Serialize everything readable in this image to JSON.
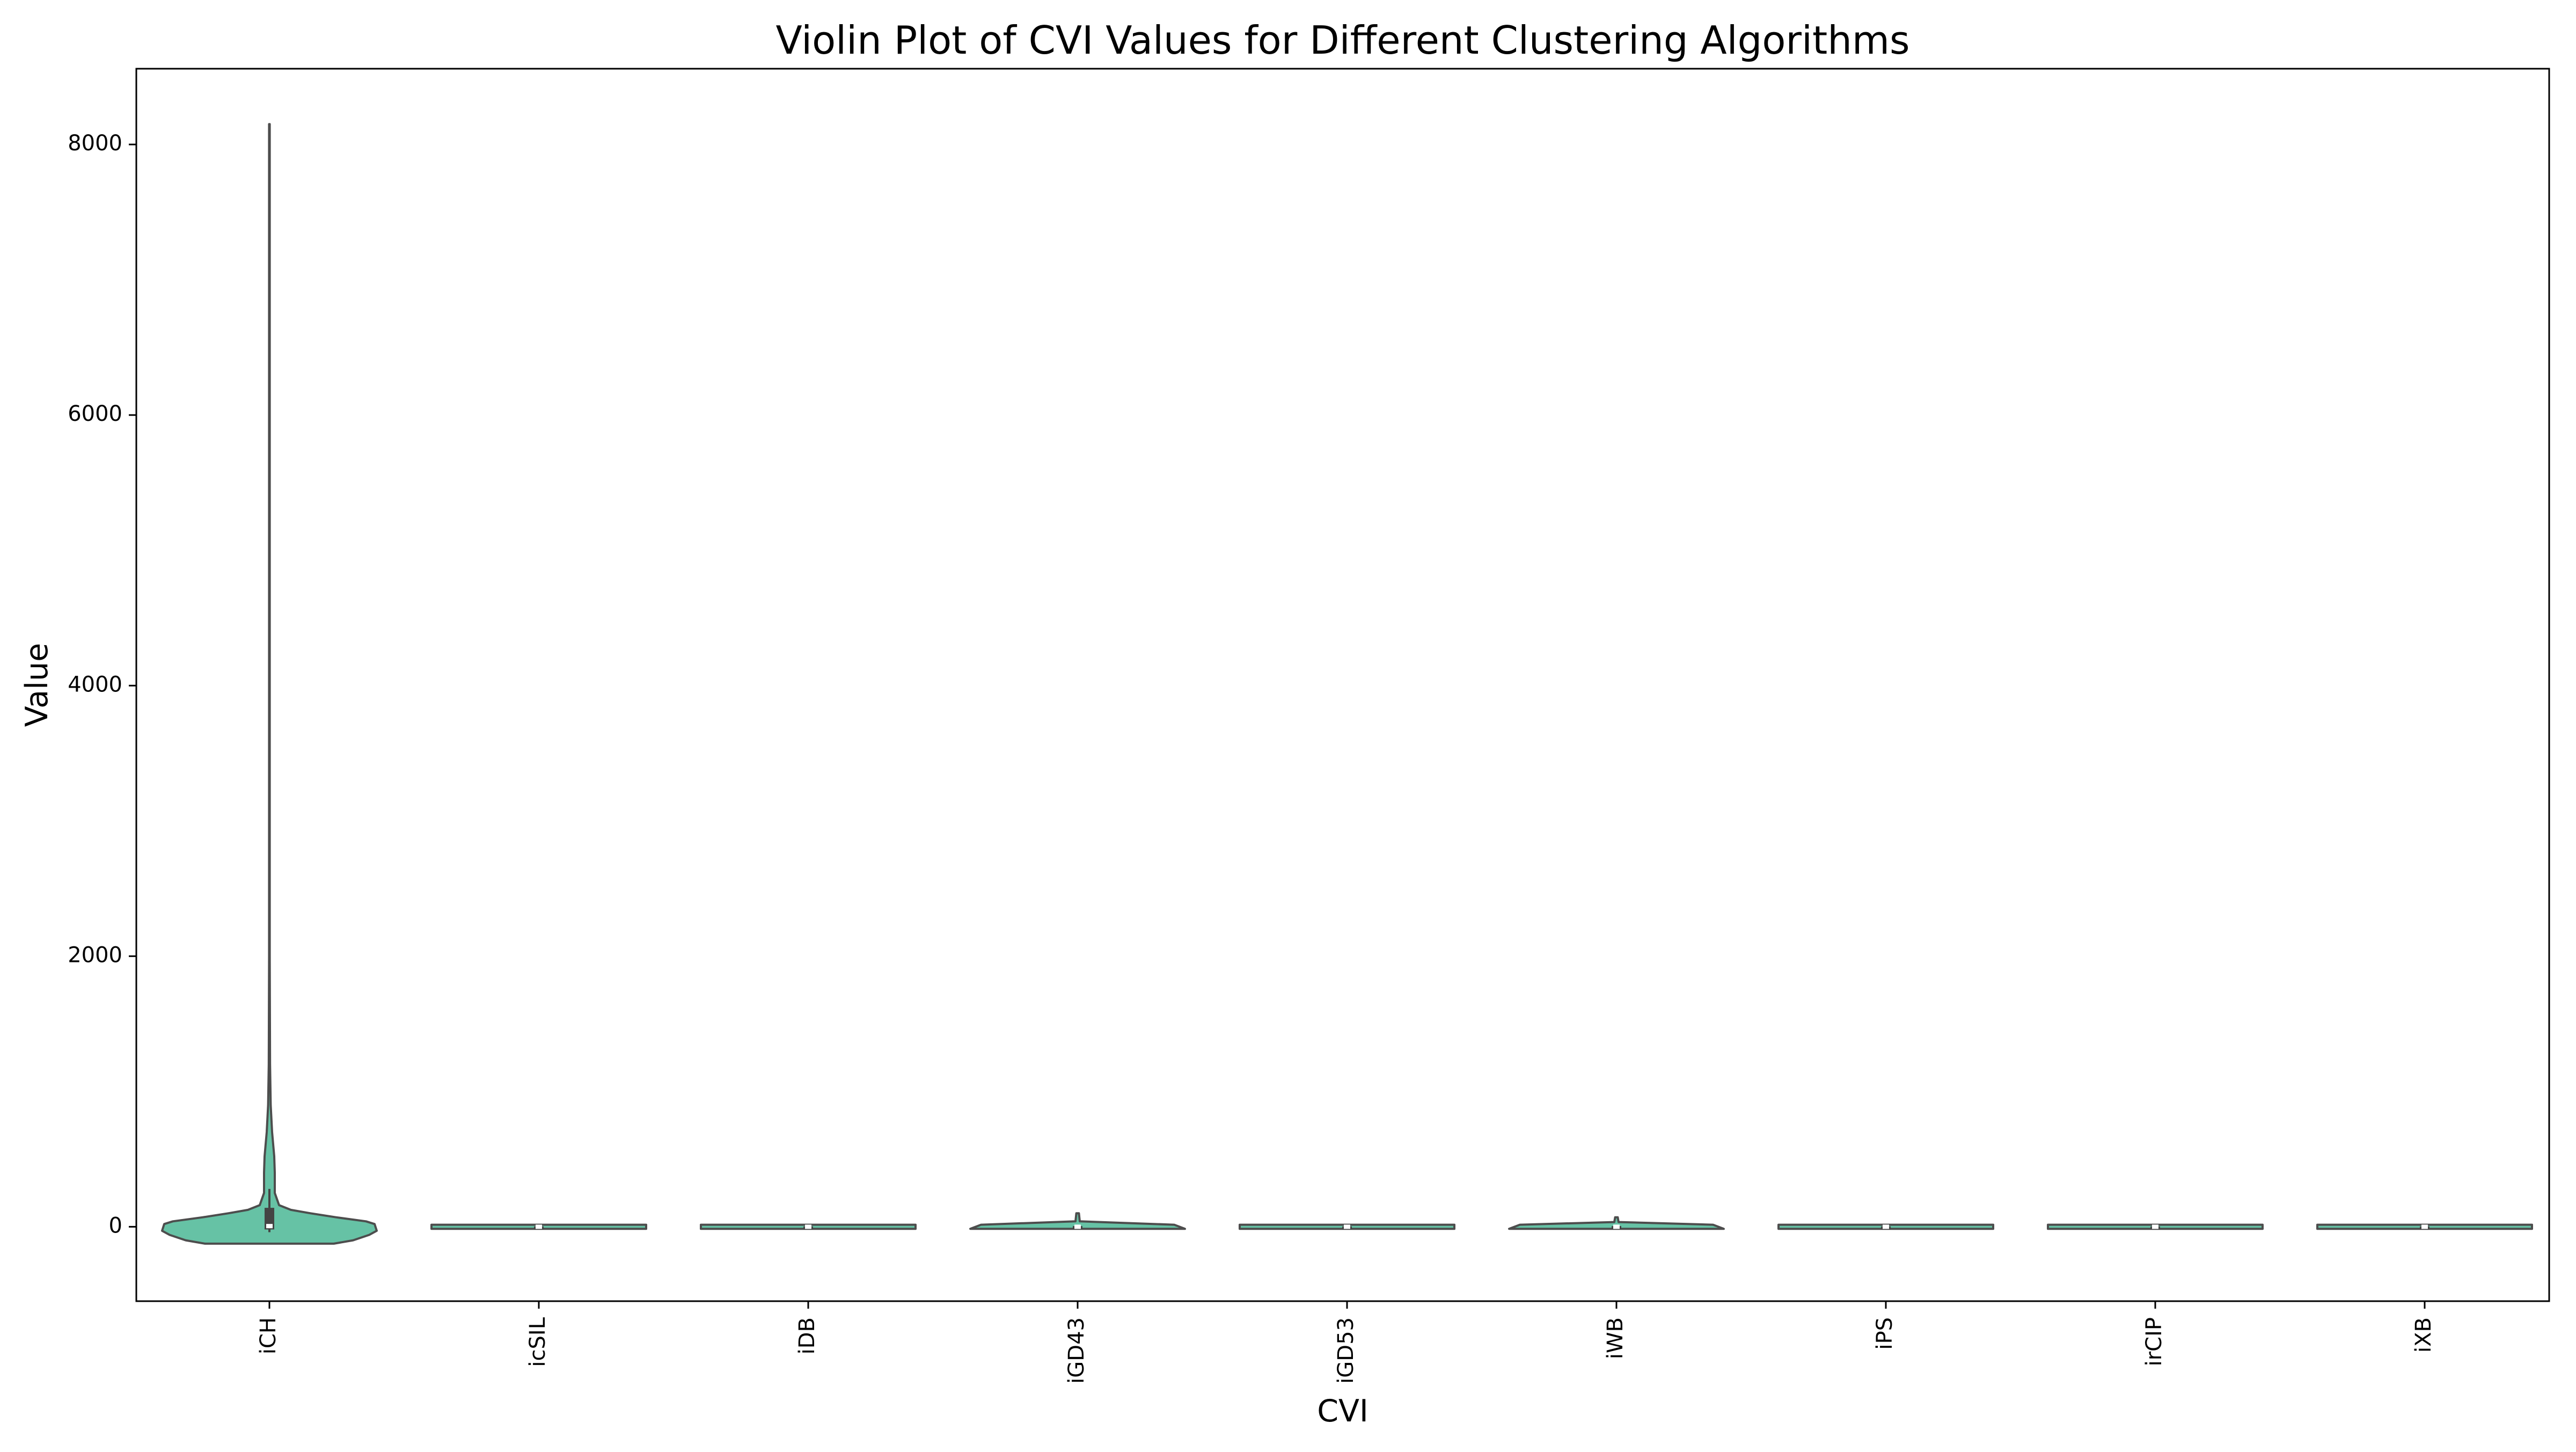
{
  "chart_data": {
    "type": "violin",
    "title": "Violin Plot of CVI Values for Different Clustering Algorithms",
    "xlabel": "CVI",
    "ylabel": "Value",
    "ylim": [
      -550,
      8560
    ],
    "yticks": [
      0,
      2000,
      4000,
      6000,
      8000
    ],
    "categories": [
      "iCH",
      "icSIL",
      "iDB",
      "iGD43",
      "iGD53",
      "iWB",
      "iPS",
      "irCIP",
      "iXB"
    ],
    "fill_color": "#66c2a5",
    "edge_color": "#4d4d4d",
    "grid": false,
    "legend": "none",
    "distributions": [
      {
        "category": "iCH",
        "profile": [
          [
            -125,
            0.6
          ],
          [
            -100,
            0.78
          ],
          [
            -60,
            0.93
          ],
          [
            -30,
            1.0
          ],
          [
            20,
            0.98
          ],
          [
            40,
            0.9
          ],
          [
            70,
            0.62
          ],
          [
            100,
            0.38
          ],
          [
            125,
            0.2
          ],
          [
            160,
            0.09
          ],
          [
            250,
            0.05
          ],
          [
            400,
            0.05
          ],
          [
            520,
            0.045
          ],
          [
            700,
            0.025
          ],
          [
            900,
            0.012
          ],
          [
            1200,
            0.006
          ],
          [
            2000,
            0.003
          ],
          [
            3000,
            0.0025
          ],
          [
            5000,
            0.0022
          ],
          [
            8150,
            0.0018
          ]
        ],
        "box": {
          "q1": -20,
          "q3": 140,
          "median": 5,
          "whisker_low": -40,
          "whisker_high": 280,
          "max": 8150
        }
      },
      {
        "category": "icSIL",
        "profile": [
          [
            -15,
            1.0
          ],
          [
            15,
            1.0
          ]
        ],
        "box": {
          "q1": -3,
          "q3": 3,
          "median": 0,
          "whisker_low": -8,
          "whisker_high": 8,
          "max": 15
        }
      },
      {
        "category": "iDB",
        "profile": [
          [
            -15,
            1.0
          ],
          [
            15,
            1.0
          ]
        ],
        "box": {
          "q1": -3,
          "q3": 3,
          "median": 0,
          "whisker_low": -8,
          "whisker_high": 8,
          "max": 15
        }
      },
      {
        "category": "iGD43",
        "profile": [
          [
            -15,
            1.0
          ],
          [
            15,
            0.9
          ],
          [
            40,
            0.02
          ],
          [
            100,
            0.012
          ]
        ],
        "box": {
          "q1": -3,
          "q3": 5,
          "median": 0,
          "whisker_low": -8,
          "whisker_high": 15,
          "max": 100
        }
      },
      {
        "category": "iGD53",
        "profile": [
          [
            -15,
            1.0
          ],
          [
            15,
            1.0
          ]
        ],
        "box": {
          "q1": -3,
          "q3": 3,
          "median": 0,
          "whisker_low": -8,
          "whisker_high": 8,
          "max": 15
        }
      },
      {
        "category": "iWB",
        "profile": [
          [
            -15,
            1.0
          ],
          [
            15,
            0.9
          ],
          [
            35,
            0.02
          ],
          [
            70,
            0.012
          ]
        ],
        "box": {
          "q1": -3,
          "q3": 5,
          "median": 0,
          "whisker_low": -8,
          "whisker_high": 15,
          "max": 70
        }
      },
      {
        "category": "iPS",
        "profile": [
          [
            -15,
            1.0
          ],
          [
            15,
            1.0
          ]
        ],
        "box": {
          "q1": -3,
          "q3": 3,
          "median": 0,
          "whisker_low": -8,
          "whisker_high": 8,
          "max": 15
        }
      },
      {
        "category": "irCIP",
        "profile": [
          [
            -15,
            1.0
          ],
          [
            15,
            1.0
          ]
        ],
        "box": {
          "q1": -3,
          "q3": 3,
          "median": 0,
          "whisker_low": -8,
          "whisker_high": 8,
          "max": 15
        }
      },
      {
        "category": "iXB",
        "profile": [
          [
            -15,
            1.0
          ],
          [
            15,
            1.0
          ]
        ],
        "box": {
          "q1": -3,
          "q3": 3,
          "median": 0,
          "whisker_low": -8,
          "whisker_high": 8,
          "max": 15
        }
      }
    ]
  }
}
